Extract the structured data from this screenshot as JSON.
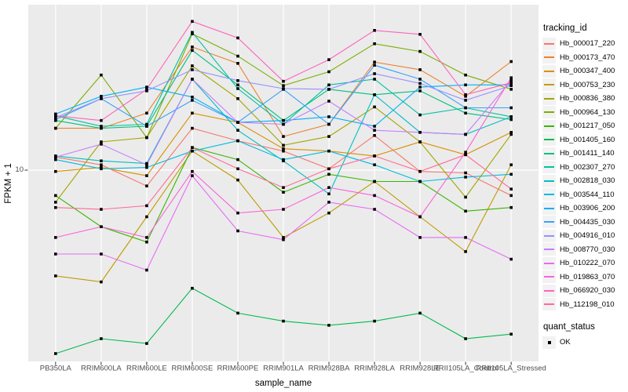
{
  "figure": {
    "background": "#FFFFFF",
    "panel_background": "#EBEBEB",
    "grid_color": "#FFFFFF",
    "tick_color": "#333333",
    "point_color": "#000000",
    "axis_text_color": "#4D4D4D",
    "title_text_color": "#000000",
    "legend_key_fill": "#F2F2F2"
  },
  "chart_data": {
    "type": "line",
    "title": "",
    "xlabel": "sample_name",
    "ylabel": "FPKM + 1",
    "y_scale": "log10",
    "ylim": [
      2.4,
      34
    ],
    "grid": "major-only",
    "legend": {
      "title": "tracking_id",
      "position": "right"
    },
    "quant_legend": {
      "title": "quant_status",
      "items": [
        {
          "label": "OK",
          "marker": "filled-square",
          "color": "#000000"
        }
      ]
    },
    "y_ticks": [
      {
        "value": 10,
        "label": "10"
      }
    ],
    "point_marker": "filled-square",
    "categories": [
      "PB350LA",
      "RRIM600LA",
      "RRIM600LE",
      "RRIM600SE",
      "RRIM600PE",
      "RRIM901LA",
      "RRIM928BA",
      "RRIM928LA",
      "RRIM928LE",
      "RRII105LA_Control",
      "RRII105LA_Stressed"
    ],
    "series": [
      {
        "name": "Hb_000017_220",
        "color": "#F8766D",
        "values": [
          11.0,
          10.4,
          8.9,
          13.6,
          12.4,
          11.5,
          10.1,
          12.9,
          9.9,
          9.8,
          8.3
        ]
      },
      {
        "name": "Hb_000173_470",
        "color": "#EA8331",
        "values": [
          13.6,
          13.6,
          15.2,
          24.7,
          21.9,
          12.8,
          14.0,
          22.1,
          20.9,
          17.2,
          22.2
        ]
      },
      {
        "name": "Hb_000347_400",
        "color": "#D89000",
        "values": [
          9.9,
          10.2,
          9.6,
          15.2,
          14.2,
          11.7,
          11.5,
          11.1,
          12.3,
          11.2,
          13.2
        ]
      },
      {
        "name": "Hb_000753_230",
        "color": "#C09B00",
        "values": [
          4.6,
          4.4,
          7.1,
          11.5,
          9.3,
          6.1,
          7.3,
          9.2,
          7.1,
          5.5,
          10.4
        ]
      },
      {
        "name": "Hb_000836_380",
        "color": "#A3A500",
        "values": [
          7.9,
          12.3,
          12.7,
          21.5,
          16.9,
          12.0,
          12.8,
          15.9,
          12.3,
          8.2,
          13.0
        ]
      },
      {
        "name": "Hb_000964_130",
        "color": "#7CAE00",
        "values": [
          13.6,
          20.1,
          12.7,
          27.2,
          23.1,
          18.6,
          20.6,
          25.3,
          23.9,
          20.1,
          18.1
        ]
      },
      {
        "name": "Hb_001217_050",
        "color": "#39B600",
        "values": [
          8.3,
          6.6,
          5.9,
          11.8,
          10.8,
          8.5,
          9.7,
          9.2,
          9.2,
          7.4,
          7.6
        ]
      },
      {
        "name": "Hb_001405_160",
        "color": "#00BB4E",
        "values": [
          2.6,
          2.9,
          2.8,
          4.2,
          3.5,
          3.3,
          3.2,
          3.3,
          3.5,
          2.9,
          3.0
        ]
      },
      {
        "name": "Hb_001411_140",
        "color": "#00BF7D",
        "values": [
          14.4,
          13.6,
          13.8,
          24.1,
          18.7,
          14.4,
          18.1,
          17.4,
          17.9,
          15.2,
          14.5
        ]
      },
      {
        "name": "Hb_002307_270",
        "color": "#00C1A3",
        "values": [
          14.9,
          13.8,
          14.0,
          27.5,
          18.2,
          14.0,
          18.7,
          19.5,
          15.0,
          15.8,
          14.8
        ]
      },
      {
        "name": "Hb_002818_030",
        "color": "#00BFC4",
        "values": [
          11.1,
          10.7,
          10.5,
          19.5,
          13.4,
          10.7,
          8.4,
          17.4,
          13.2,
          13.0,
          14.8
        ]
      },
      {
        "name": "Hb_003544_110",
        "color": "#00BAE0",
        "values": [
          10.8,
          10.1,
          10.2,
          11.5,
          12.4,
          10.8,
          11.5,
          10.4,
          9.2,
          9.5,
          9.7
        ]
      },
      {
        "name": "Hb_003906_200",
        "color": "#00B0F6",
        "values": [
          15.1,
          17.2,
          18.4,
          17.1,
          14.2,
          14.4,
          14.8,
          13.8,
          18.4,
          18.7,
          18.7
        ]
      },
      {
        "name": "Hb_004435_030",
        "color": "#35A2FF",
        "values": [
          14.5,
          16.9,
          13.8,
          16.7,
          14.2,
          18.1,
          14.0,
          21.6,
          19.5,
          15.8,
          15.8
        ]
      },
      {
        "name": "Hb_004916_010",
        "color": "#9590FF",
        "values": [
          14.7,
          16.9,
          17.9,
          20.9,
          19.3,
          18.2,
          18.1,
          20.3,
          18.9,
          16.7,
          18.6
        ]
      },
      {
        "name": "Hb_008770_030",
        "color": "#C77CFF",
        "values": [
          11.0,
          12.1,
          10.4,
          19.5,
          14.2,
          14.0,
          16.6,
          13.4,
          13.2,
          13.0,
          19.3
        ]
      },
      {
        "name": "Hb_010222_070",
        "color": "#E76BF3",
        "values": [
          5.4,
          5.4,
          4.8,
          9.6,
          6.4,
          6.0,
          7.9,
          7.5,
          6.1,
          6.1,
          5.2
        ]
      },
      {
        "name": "Hb_019863_070",
        "color": "#FA62DB",
        "values": [
          6.1,
          6.6,
          6.1,
          9.9,
          7.3,
          7.5,
          8.8,
          8.3,
          7.1,
          11.4,
          19.7
        ]
      },
      {
        "name": "Hb_066920_030",
        "color": "#FF62BC",
        "values": [
          14.9,
          14.4,
          18.1,
          29.8,
          26.4,
          19.2,
          22.5,
          27.9,
          27.1,
          17.4,
          19.0
        ]
      },
      {
        "name": "Hb_112198_010",
        "color": "#FF6A98",
        "values": [
          7.6,
          7.5,
          7.7,
          11.8,
          10.1,
          8.8,
          10.1,
          11.1,
          9.9,
          11.2,
          8.7
        ]
      }
    ]
  }
}
